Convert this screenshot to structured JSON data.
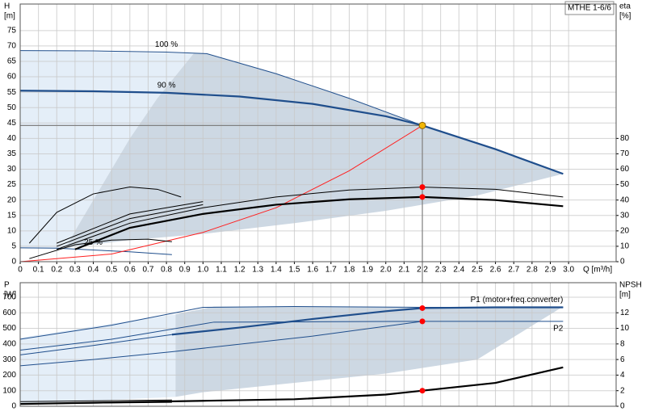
{
  "chart_data": [
    {
      "type": "line",
      "model": "MTHE 1-6/6",
      "y_label": "H",
      "y_unit": "[m]",
      "y2_label": "eta",
      "y2_unit": "[%]",
      "x_label": "Q [m³/h]",
      "xlim": [
        0,
        3.26
      ],
      "ylim": [
        0,
        83.6
      ],
      "y2lim": [
        0,
        167.2
      ],
      "grid": true,
      "xticks": [
        0,
        0.1,
        0.2,
        0.3,
        0.4,
        0.5,
        0.6,
        0.7,
        0.8,
        0.9,
        {
          "value": 1,
          "label": "1.0"
        },
        1.1,
        1.2,
        1.3,
        1.4,
        1.5,
        1.6,
        1.7,
        1.8,
        1.9,
        {
          "value": 2,
          "label": "2.0"
        },
        2.1,
        2.2,
        2.3,
        2.4,
        2.5,
        2.6,
        2.7,
        2.8,
        2.9,
        {
          "value": 3,
          "label": "3.0"
        }
      ],
      "yticks": [
        0,
        5,
        10,
        15,
        20,
        25,
        30,
        35,
        40,
        45,
        50,
        55,
        60,
        65,
        70,
        75
      ],
      "y2ticks": [
        0,
        10,
        20,
        30,
        40,
        50,
        60,
        70,
        80
      ],
      "areas": [
        {
          "color": "#e4eef8",
          "x": [
            0,
            0.95,
            0.75,
            0.6,
            0.45,
            0.3,
            0.25,
            0
          ],
          "values": [
            68.5,
            67.6,
            53,
            40,
            25,
            10,
            4.5,
            4.5
          ]
        },
        {
          "color": "#cdd8e3",
          "x": [
            0.25,
            0.3,
            0.45,
            0.6,
            0.75,
            0.95,
            1.02,
            1.4,
            1.8,
            2.2,
            2.6,
            2.97,
            2.5,
            2.0,
            1.5,
            1.0,
            0.6
          ],
          "values": [
            4.5,
            10,
            25,
            40,
            53,
            67.6,
            67.5,
            61,
            53,
            44.2,
            36.5,
            28.5,
            21.5,
            16.5,
            12.5,
            9,
            7
          ]
        }
      ],
      "series": [
        {
          "name": "100 %",
          "color": "#1f4e8c",
          "style": "thin",
          "x": [
            0,
            0.4,
            0.8,
            1.02,
            1.4,
            1.8,
            2.2,
            2.6,
            2.97
          ],
          "values": [
            68.5,
            68.4,
            68,
            67.5,
            61,
            53,
            44.2,
            36.5,
            28.5
          ]
        },
        {
          "name": "90 %",
          "color": "#1f4e8c",
          "style": "thick",
          "x": [
            0,
            0.4,
            0.8,
            1.2,
            1.6,
            2.0,
            2.2,
            2.6,
            2.97
          ],
          "values": [
            55.5,
            55.3,
            54.8,
            53.6,
            51.2,
            47.2,
            44.2,
            36.5,
            28.5
          ]
        },
        {
          "name": "25 %",
          "color": "#1f4e8c",
          "style": "thin",
          "x": [
            0,
            0.2,
            0.4,
            0.6,
            0.83
          ],
          "values": [
            4.5,
            4.4,
            3.8,
            3.2,
            2.3
          ]
        },
        {
          "color": "#ff2020",
          "style": "thin",
          "x": [
            0,
            0.5,
            1.0,
            1.4,
            1.8,
            2.2
          ],
          "values": [
            0,
            2.5,
            9.5,
            17.5,
            29.5,
            44.2
          ]
        },
        {
          "color": "#000000",
          "style": "thick",
          "axis": "y2",
          "x": [
            0.3,
            0.6,
            1.0,
            1.4,
            1.8,
            2.2,
            2.6,
            2.97
          ],
          "values": [
            8,
            22,
            31,
            37,
            40.5,
            42,
            40,
            36
          ]
        },
        {
          "color": "#000000",
          "style": "thin",
          "axis": "y2",
          "x": [
            0.2,
            0.6,
            1.0,
            1.4,
            1.8,
            2.2,
            2.6,
            2.97
          ],
          "values": [
            8,
            25,
            35,
            42,
            46.5,
            48.4,
            47,
            42
          ]
        },
        {
          "color": "#000000",
          "style": "thin",
          "axis": "y2",
          "x": [
            0.2,
            0.6,
            1.0
          ],
          "values": [
            10,
            28,
            37
          ]
        },
        {
          "color": "#000000",
          "style": "thin",
          "axis": "y2",
          "x": [
            0.2,
            0.6,
            1.0
          ],
          "values": [
            12,
            31,
            39
          ]
        },
        {
          "color": "#000000",
          "style": "thin",
          "axis": "y2",
          "x": [
            0.05,
            0.3,
            0.5,
            0.7,
            0.83
          ],
          "values": [
            2,
            11,
            14,
            14.6,
            13
          ]
        },
        {
          "color": "#000000",
          "style": "thin",
          "axis": "y2",
          "x": [
            0.05,
            0.2,
            0.4,
            0.6,
            0.75,
            0.88
          ],
          "values": [
            12,
            32,
            44,
            48.5,
            47,
            42
          ]
        }
      ],
      "points": [
        {
          "color": "#ff0000",
          "axis": "y2",
          "x": 2.2,
          "value": 48.4
        },
        {
          "color": "#ff0000",
          "axis": "y2",
          "x": 2.2,
          "value": 42
        }
      ],
      "duty_point": {
        "x": 2.2,
        "value": 44.2,
        "color": "#f2b705"
      }
    },
    {
      "type": "line",
      "y_label": "P",
      "y_unit": "[W]",
      "y2_label": "NPSH",
      "y2_unit": "[m]",
      "xlim": [
        0,
        3.26
      ],
      "ylim": [
        0,
        793
      ],
      "y2lim": [
        0,
        15.86
      ],
      "grid": true,
      "yticks": [
        0,
        100,
        200,
        300,
        400,
        500,
        600,
        700
      ],
      "y2ticks": [
        0,
        2,
        4,
        6,
        8,
        10,
        12
      ],
      "areas": [
        {
          "color": "#e4eef8",
          "x": [
            0,
            0.5,
            0.85,
            0.85,
            0.3,
            0
          ],
          "values": [
            440,
            530,
            590,
            60,
            30,
            20
          ]
        },
        {
          "color": "#cdd8e3",
          "x": [
            0.85,
            1.06,
            2.2,
            2.97,
            2.5,
            2.0,
            1.5,
            1.0,
            0.85
          ],
          "values": [
            590,
            640,
            635,
            640,
            300,
            210,
            150,
            90,
            60
          ]
        }
      ],
      "series": [
        {
          "name": "P1 (motor+freq.converter)",
          "color": "#1f4e8c",
          "style": "thick",
          "x": [
            0.83,
            1.2,
            1.6,
            2.0,
            2.2,
            2.6,
            2.97
          ],
          "values": [
            460,
            505,
            560,
            610,
            630,
            635,
            635
          ]
        },
        {
          "name": "P2",
          "color": "#1f4e8c",
          "style": "thin",
          "x": [
            0,
            0.5,
            1.06,
            1.6,
            2.2,
            2.6,
            2.97
          ],
          "values": [
            360,
            430,
            540,
            542,
            545,
            545,
            545
          ]
        },
        {
          "color": "#1f4e8c",
          "style": "thin",
          "x": [
            0,
            0.5,
            1.0,
            1.5,
            2.2,
            2.97
          ],
          "values": [
            430,
            520,
            635,
            640,
            635,
            635
          ]
        },
        {
          "color": "#1f4e8c",
          "style": "thin",
          "x": [
            0,
            0.4,
            0.83,
            1.6,
            2.2
          ],
          "values": [
            260,
            300,
            350,
            450,
            545
          ]
        },
        {
          "color": "#1f4e8c",
          "style": "thin",
          "x": [
            0,
            0.4,
            0.83
          ],
          "values": [
            330,
            390,
            460
          ]
        },
        {
          "color": "#000000",
          "style": "thick",
          "axis": "y2",
          "x": [
            0,
            0.5,
            1.0,
            1.5,
            2.0,
            2.2,
            2.6,
            2.97
          ],
          "values": [
            0.3,
            0.5,
            0.7,
            0.9,
            1.5,
            2,
            3,
            5
          ]
        },
        {
          "color": "#000000",
          "style": "thin",
          "x": [
            0,
            0.4,
            0.83
          ],
          "values": [
            30,
            35,
            40
          ]
        },
        {
          "color": "#000000",
          "style": "thin",
          "x": [
            0,
            0.4,
            0.83
          ],
          "values": [
            15,
            20,
            25
          ]
        }
      ],
      "points": [
        {
          "color": "#ff0000",
          "x": 2.2,
          "value": 630
        },
        {
          "color": "#ff0000",
          "x": 2.2,
          "value": 545
        },
        {
          "color": "#ff0000",
          "axis": "y2",
          "x": 2.2,
          "value": 2
        }
      ]
    }
  ]
}
